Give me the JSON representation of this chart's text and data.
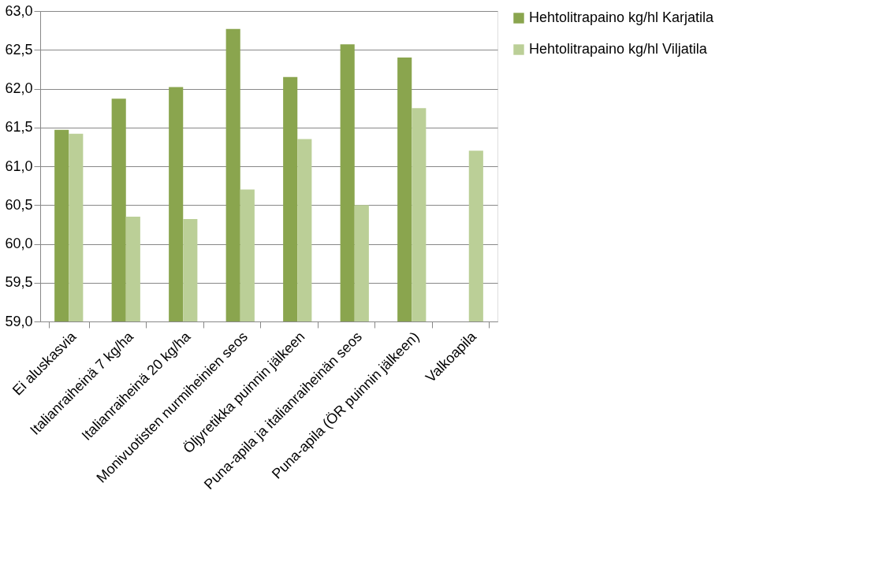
{
  "chart_data": {
    "type": "bar",
    "categories": [
      "Ei aluskasvia",
      "Italianraiheinä 7 kg/ha",
      "Italianraiheinä 20 kg/ha",
      "Monivuotisten nurmiheinien seos",
      "Öljyretikka puinnin jälkeen",
      "Puna-apila ja italianraiheinän seos",
      "Puna-apila (ÖR puinnin jälkeen)",
      "Valkoapila"
    ],
    "series": [
      {
        "name": "Hehtolitrapaino kg/hl Karjatila",
        "color": "#8aa54e",
        "values": [
          61.47,
          61.87,
          62.02,
          62.77,
          62.15,
          62.57,
          62.4,
          null
        ]
      },
      {
        "name": "Hehtolitrapaino kg/hl Viljatila",
        "color": "#bbcf97",
        "values": [
          61.42,
          60.35,
          60.32,
          60.7,
          61.35,
          60.5,
          61.75,
          61.2
        ]
      }
    ],
    "ylim": [
      59,
      63
    ],
    "yticks": [
      {
        "value": 59,
        "label": "59,0"
      },
      {
        "value": 59.5,
        "label": "59,5"
      },
      {
        "value": 60,
        "label": "60,0"
      },
      {
        "value": 60.5,
        "label": "60,5"
      },
      {
        "value": 61,
        "label": "61,0"
      },
      {
        "value": 61.5,
        "label": "61,5"
      },
      {
        "value": 62,
        "label": "62,0"
      },
      {
        "value": 62.5,
        "label": "62,5"
      },
      {
        "value": 63,
        "label": "63,0"
      }
    ],
    "grid": "y",
    "legend": "right"
  }
}
